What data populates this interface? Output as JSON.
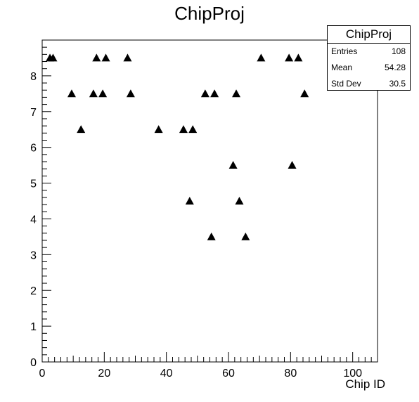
{
  "chart_data": {
    "type": "scatter",
    "title": "ChipProj",
    "xlabel": "Chip ID",
    "ylabel": "",
    "xlim": [
      0,
      108
    ],
    "ylim": [
      0,
      9
    ],
    "xticks": [
      0,
      20,
      40,
      60,
      80,
      100
    ],
    "yticks": [
      0,
      1,
      2,
      3,
      4,
      5,
      6,
      7,
      8
    ],
    "grid": false,
    "marker": "triangle",
    "points": [
      {
        "x": 2.5,
        "y": 8.5
      },
      {
        "x": 3.5,
        "y": 8.5
      },
      {
        "x": 17.5,
        "y": 8.5
      },
      {
        "x": 20.5,
        "y": 8.5
      },
      {
        "x": 27.5,
        "y": 8.5
      },
      {
        "x": 70.5,
        "y": 8.5
      },
      {
        "x": 79.5,
        "y": 8.5
      },
      {
        "x": 82.5,
        "y": 8.5
      },
      {
        "x": 9.5,
        "y": 7.5
      },
      {
        "x": 16.5,
        "y": 7.5
      },
      {
        "x": 19.5,
        "y": 7.5
      },
      {
        "x": 28.5,
        "y": 7.5
      },
      {
        "x": 52.5,
        "y": 7.5
      },
      {
        "x": 55.5,
        "y": 7.5
      },
      {
        "x": 62.5,
        "y": 7.5
      },
      {
        "x": 84.5,
        "y": 7.5
      },
      {
        "x": 12.5,
        "y": 6.5
      },
      {
        "x": 37.5,
        "y": 6.5
      },
      {
        "x": 45.5,
        "y": 6.5
      },
      {
        "x": 48.5,
        "y": 6.5
      },
      {
        "x": 61.5,
        "y": 5.5
      },
      {
        "x": 80.5,
        "y": 5.5
      },
      {
        "x": 47.5,
        "y": 4.5
      },
      {
        "x": 63.5,
        "y": 4.5
      },
      {
        "x": 54.5,
        "y": 3.5
      },
      {
        "x": 65.5,
        "y": 3.5
      }
    ]
  },
  "stats_box": {
    "title": "ChipProj",
    "rows": [
      {
        "label": "Entries",
        "value": "108"
      },
      {
        "label": "Mean",
        "value": "54.28"
      },
      {
        "label": "Std Dev",
        "value": "30.5"
      }
    ]
  }
}
